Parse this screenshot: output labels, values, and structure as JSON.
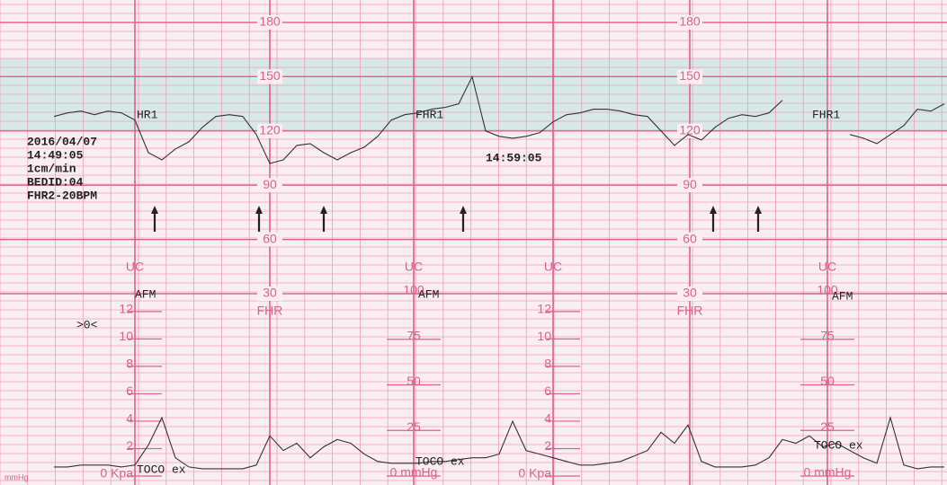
{
  "chart_data": {
    "type": "ctg",
    "header_lines": [
      "2016/04/07",
      "14:49:05",
      "1cm/min",
      "BEDID:04",
      "FHR2-20BPM"
    ],
    "timestamp": "14:59:05",
    "fhr_label": "FHR",
    "uc_label": "UC",
    "trace_labels": [
      "HR1",
      "FHR1",
      "FHR1"
    ],
    "afm_label": "AFM",
    "toco_label": "TOCO ex",
    "marker_label": ">0<",
    "unit_label": "mmHg",
    "ylim": [
      30,
      180
    ],
    "yticks": [
      180,
      150,
      120,
      90,
      60,
      30
    ],
    "band": [
      120,
      160
    ],
    "uc_ylim": [
      0,
      100
    ],
    "uc_ticks": [
      {
        "value": 0,
        "label": "0 mmHg"
      },
      25,
      50,
      75,
      100
    ],
    "kpa_ylim": [
      0,
      13.3
    ],
    "kpa_ticks": [
      {
        "value": 0,
        "label": "0 Kpa"
      },
      2,
      4,
      6,
      8,
      10,
      12
    ],
    "series": [
      {
        "name": "FHR1",
        "color": "#333333",
        "axis": "y",
        "values": [
          128,
          130,
          131,
          129,
          131,
          130,
          126,
          108,
          104,
          110,
          114,
          122,
          128,
          129,
          128,
          118,
          102,
          104,
          112,
          113,
          108,
          104,
          108,
          111,
          117,
          126,
          129,
          130,
          132,
          133,
          135,
          150,
          120,
          117,
          116,
          117,
          119,
          125,
          129,
          130,
          132,
          132,
          131,
          129,
          128,
          120,
          112,
          118,
          115,
          122,
          127,
          129,
          128,
          130,
          137,
          null,
          null,
          null,
          null,
          118,
          116,
          113,
          118,
          123,
          132,
          131,
          135
        ]
      },
      {
        "name": "TOCO",
        "color": "#333333",
        "axis": "uc",
        "values": [
          5,
          5,
          6,
          6,
          6,
          5,
          6,
          17,
          32,
          10,
          5,
          4,
          4,
          4,
          4,
          6,
          22,
          14,
          18,
          10,
          16,
          20,
          18,
          12,
          8,
          7,
          7,
          7,
          8,
          8,
          9,
          10,
          10,
          12,
          30,
          14,
          12,
          10,
          8,
          6,
          6,
          7,
          8,
          11,
          14,
          24,
          18,
          28,
          8,
          5,
          5,
          5,
          6,
          10,
          20,
          18,
          22,
          16,
          18,
          14,
          10,
          7,
          32,
          6,
          4,
          5,
          5
        ]
      }
    ]
  }
}
